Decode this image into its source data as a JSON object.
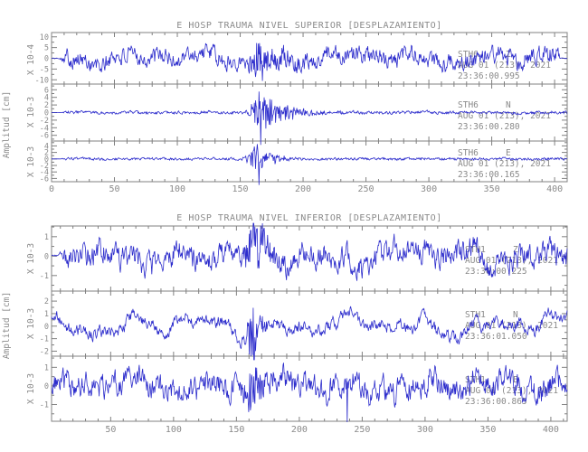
{
  "app": {
    "description": "seismogram waveform viewer"
  },
  "colors": {
    "background": "#ffffff",
    "waveform": "#2d2dcc",
    "text": "#8a8a8a",
    "frame": "#808080"
  },
  "chart_data": [
    {
      "type": "line",
      "title": "E HOSP TRAUMA NIVEL SUPERIOR [DESPLAZAMIENTO]",
      "ylabel": "Amplitud [cm]",
      "xlabel": "",
      "grid": false,
      "x_range": [
        0,
        410
      ],
      "xticks": [
        0,
        50,
        100,
        150,
        200,
        250,
        300,
        350,
        400
      ],
      "xtick_minor_step": 10,
      "traces": [
        {
          "station": "STH6",
          "component": "Z",
          "date": "AUG 01 (213), 2021",
          "time": "23:36:00.995",
          "scale": "X 10-4",
          "yticks": [
            10,
            5,
            0,
            -5,
            -10
          ],
          "ytick_minor_step": 2.5,
          "y_range": [
            12,
            -12
          ],
          "gen": {
            "seed": 101,
            "noise": 3.4,
            "wander": 2.6,
            "amp": 9,
            "c": 164,
            "sig": 4,
            "tail": 16,
            "lead": 6,
            "end": 404,
            "ovt": 2,
            "ovb": 2,
            "smooth": 0.5
          }
        },
        {
          "station": "STH6",
          "component": "N",
          "date": "AUG 01 (213), 2021",
          "time": "23:36:00.280",
          "scale": "X 10-3",
          "yticks": [
            6,
            4,
            2,
            0,
            -2,
            -4,
            -6
          ],
          "ytick_minor_step": 1,
          "y_range": [
            7.5,
            -7.5
          ],
          "gen": {
            "seed": 202,
            "noise": 0.33,
            "wander": 0.12,
            "amp": 5.6,
            "c": 165,
            "sig": 4.5,
            "tail": 20,
            "lead": 6,
            "ovt": 2,
            "ovb": 9,
            "smooth": 0.4,
            "spikes": [
              {
                "x": 166.2,
                "v": -8.5
              }
            ]
          }
        },
        {
          "station": "STH6",
          "component": "E",
          "date": "AUG 01 (213), 2021",
          "time": "23:36:00.165",
          "scale": "X 10-3",
          "yticks": [
            4,
            2,
            0,
            -2,
            -4,
            -6
          ],
          "ytick_minor_step": 1,
          "y_range": [
            5.5,
            -7
          ],
          "gen": {
            "seed": 303,
            "noise": 0.33,
            "wander": 0.1,
            "amp": 4.6,
            "c": 164,
            "sig": 5,
            "tail": 11,
            "lead": 6,
            "ovt": 2,
            "ovb": 9,
            "smooth": 0.4,
            "spikes": [
              {
                "x": 164.8,
                "v": -8
              }
            ]
          }
        }
      ]
    },
    {
      "type": "line",
      "title": "E HOSP TRAUMA NIVEL INFERIOR [DESPLAZAMIENTO]",
      "ylabel": "Amplitud [cm]",
      "xlabel": "",
      "grid": false,
      "x_range": [
        3,
        413
      ],
      "xticks": [
        50,
        100,
        150,
        200,
        250,
        300,
        350,
        400
      ],
      "xtick_minor_step": 10,
      "traces": [
        {
          "station": "STH1",
          "component": "Z",
          "date": "AUG 01 (213), 2021",
          "time": "23:36:00.225",
          "scale": "X 10-3",
          "yticks": [
            1,
            0,
            -1
          ],
          "ytick_minor_step": 0.5,
          "y_range": [
            1.55,
            -1.8
          ],
          "gen": {
            "seed": 404,
            "noise": 0.5,
            "wander": 0.5,
            "amp": 1.5,
            "c": 163,
            "sig": 4,
            "tail": 9,
            "lead": 8,
            "ovt": 3,
            "ovb": 3,
            "smooth": 0.55
          }
        },
        {
          "station": "STH1",
          "component": "N",
          "date": "AUG 01 (213), 2021",
          "time": "23:36:01.050",
          "scale": "X 10-3",
          "yticks": [
            2,
            1,
            0,
            -1,
            -2
          ],
          "ytick_minor_step": 0.5,
          "y_range": [
            2.8,
            -2.4
          ],
          "gen": {
            "seed": 505,
            "noise": 0.4,
            "wander": 0.8,
            "amp": 2.4,
            "c": 163,
            "sig": 3,
            "tail": 6,
            "ovt": 3,
            "ovb": 4,
            "smooth": 0.6,
            "spikes": [
              {
                "x": 164,
                "v": -2.9
              }
            ]
          }
        },
        {
          "station": "STH1",
          "component": "E",
          "date": "AUG 01 (213), 2021",
          "time": "23:36:00.865",
          "scale": "X 10-3",
          "yticks": [
            1,
            0,
            -1
          ],
          "ytick_minor_step": 0.5,
          "y_range": [
            1.6,
            -1.9
          ],
          "gen": {
            "seed": 606,
            "noise": 0.55,
            "wander": 0.4,
            "amp": 1.3,
            "c": 166,
            "sig": 7,
            "tail": 9,
            "ovt": 3,
            "ovb": 3,
            "smooth": 0.55,
            "spikes": [
              {
                "x": 238,
                "v": -1.95
              }
            ]
          }
        }
      ]
    }
  ]
}
